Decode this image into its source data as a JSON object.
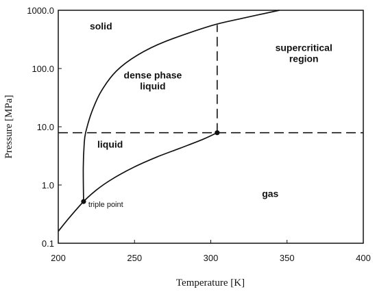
{
  "chart_data": {
    "type": "line",
    "xlabel": "Temperature [K]",
    "ylabel": "Pressure [MPa]",
    "xlim": [
      200,
      400
    ],
    "ylim": [
      0.1,
      1000
    ],
    "yscale": "log",
    "x_ticks": [
      "200",
      "250",
      "300",
      "350",
      "400"
    ],
    "y_ticks": [
      "0.1",
      "1.0",
      "10.0",
      "100.0",
      "1000.0"
    ],
    "grid": false,
    "series": [
      {
        "role": "sublimation-vaporization-curve",
        "points": [
          [
            200,
            0.16
          ],
          [
            207,
            0.27
          ],
          [
            216.6,
            0.52
          ],
          [
            225,
            0.82
          ],
          [
            235,
            1.25
          ],
          [
            250,
            2.05
          ],
          [
            265,
            3.05
          ],
          [
            280,
            4.3
          ],
          [
            295,
            6.1
          ],
          [
            304.2,
            7.9
          ]
        ]
      },
      {
        "role": "melting-curve",
        "points": [
          [
            216.6,
            0.52
          ],
          [
            216.4,
            2.0
          ],
          [
            217,
            5.0
          ],
          [
            218,
            8.0
          ],
          [
            222,
            18
          ],
          [
            228,
            40
          ],
          [
            238,
            90
          ],
          [
            252,
            170
          ],
          [
            270,
            290
          ],
          [
            300,
            540
          ],
          [
            320,
            720
          ],
          [
            345,
            1000
          ]
        ]
      }
    ],
    "reference_lines": [
      {
        "orientation": "horizontal",
        "style": "dashed",
        "y": 7.9,
        "x_range": [
          200,
          400
        ]
      },
      {
        "orientation": "vertical",
        "style": "dashed",
        "x": 304.2,
        "y_range": [
          7.9,
          560
        ]
      }
    ],
    "points": [
      {
        "name": "triple point",
        "x": 216.6,
        "y": 0.52,
        "label": "triple point"
      },
      {
        "name": "critical point",
        "x": 304.2,
        "y": 7.9
      }
    ],
    "region_labels": [
      {
        "name": "solid",
        "lines": [
          "solid"
        ],
        "x": 228,
        "y": 470
      },
      {
        "name": "dense-phase-liquid",
        "lines": [
          "dense phase",
          "liquid"
        ],
        "x": 262,
        "y": 54
      },
      {
        "name": "supercritical-region",
        "lines": [
          "supercritical",
          "region"
        ],
        "x": 361,
        "y": 160
      },
      {
        "name": "liquid",
        "lines": [
          "liquid"
        ],
        "x": 234,
        "y": 4.4
      },
      {
        "name": "gas",
        "lines": [
          "gas"
        ],
        "x": 339,
        "y": 0.62
      }
    ]
  }
}
